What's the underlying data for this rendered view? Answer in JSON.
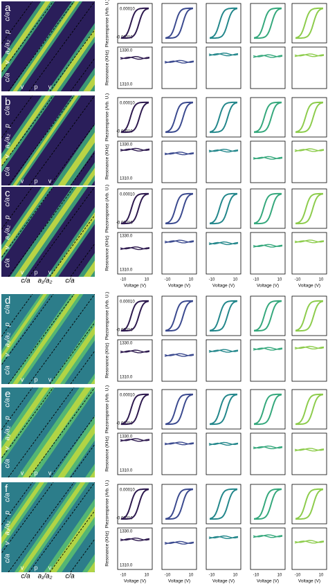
{
  "panels": [
    {
      "letter": "a",
      "side_labels": [
        "c/a",
        "p",
        "a₁/a₂",
        "v",
        "c/a"
      ],
      "bottom_labels": [
        "v",
        "p",
        "v"
      ]
    },
    {
      "letter": "b",
      "side_labels": [
        "c/a",
        "p",
        "a₁/a₂",
        "v",
        "c/a"
      ],
      "bottom_labels": [
        "v",
        "p",
        "v"
      ]
    },
    {
      "letter": "c",
      "side_labels": [
        "c/a",
        "p",
        "a₁/a₂",
        "v",
        "c/a"
      ],
      "bottom_labels": [
        "v",
        "p",
        "v"
      ],
      "footer": [
        "c/a",
        "a₁/a₂",
        "c/a"
      ]
    },
    {
      "letter": "d",
      "side_labels": [
        "c/a",
        "p",
        "a₁/a₂",
        "v",
        "c/a"
      ],
      "bottom_labels": [
        "v",
        "p",
        "v"
      ]
    },
    {
      "letter": "e",
      "side_labels": [
        "c/a",
        "p",
        "a₁/a₂",
        "v",
        "c/a"
      ],
      "bottom_labels": [
        "v",
        "p",
        "v"
      ]
    },
    {
      "letter": "f",
      "side_labels": [
        "c/a",
        "p",
        "a₁/a₂",
        "v",
        "c/a"
      ],
      "bottom_labels": [
        "v",
        "p",
        "v"
      ],
      "footer": [
        "c/a",
        "a₁/a₂",
        "c/a"
      ]
    }
  ],
  "axes": {
    "piezo_label": "Piezoresponse (Arb. U.)",
    "piezo_ticks": [
      "0.00010",
      "-0.00010"
    ],
    "res_label": "Resonance (KHz)",
    "res_ticks": [
      "1330.0",
      "1310.0"
    ],
    "voltage_label": "Voltage (V)",
    "voltage_ticks": [
      "-10",
      "10"
    ]
  },
  "column_colors": [
    "#2e1a4f",
    "#3b4a8f",
    "#23878b",
    "#35a87c",
    "#8dcc4c"
  ]
}
